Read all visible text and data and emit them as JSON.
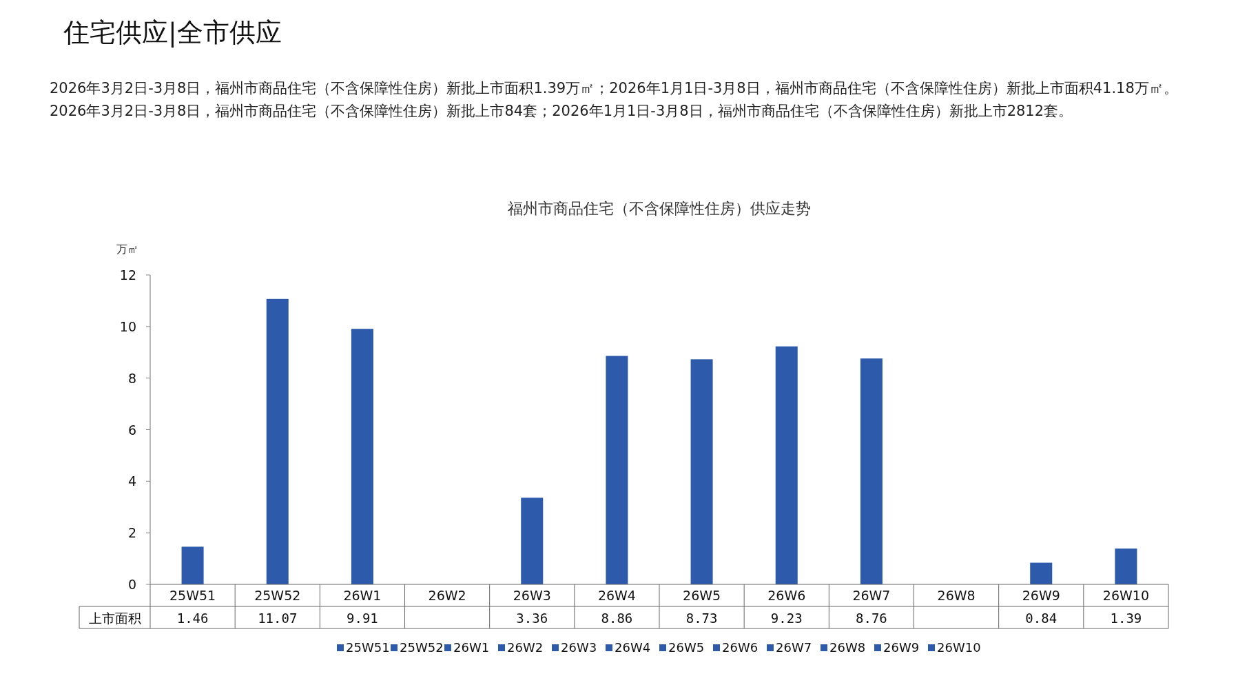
{
  "chart_data": {
    "type": "bar",
    "title": "福州市商品住宅（不含保障性住房）供应走势",
    "ylabel": "万㎡",
    "annotations": [
      "住宅供应|全市供应",
      "2026年3月2日-3月8日，福州市商品住宅（不含保障性住房）新批上市面积1.39万㎡；2026年1月1日-3月8日，福州市商品住宅（不含保障性住房）新批上市面积41.18万㎡。2026年3月2日-3月8日，福州市商品住宅（不含保障性住房）新批上市84套；2026年1月1日-3月8日，福州市商品住宅（不含保障性住房）新批上市2812套。"
    ],
    "categories": [
      "25W51",
      "25W52",
      "26W1",
      "26W2",
      "26W3",
      "26W4",
      "26W5",
      "26W6",
      "26W7",
      "26W8",
      "26W9",
      "26W10"
    ],
    "series": [
      {
        "name": "上市面积",
        "color": "#2e5aac",
        "values": [
          1.46,
          11.07,
          9.91,
          null,
          3.36,
          8.86,
          8.73,
          9.23,
          8.76,
          null,
          0.84,
          1.39
        ]
      }
    ],
    "ylim": [
      0,
      12
    ],
    "yticks": [
      0,
      2,
      4,
      6,
      8,
      10,
      12
    ],
    "grid": false,
    "legend": "bottom",
    "data_labels": true
  }
}
